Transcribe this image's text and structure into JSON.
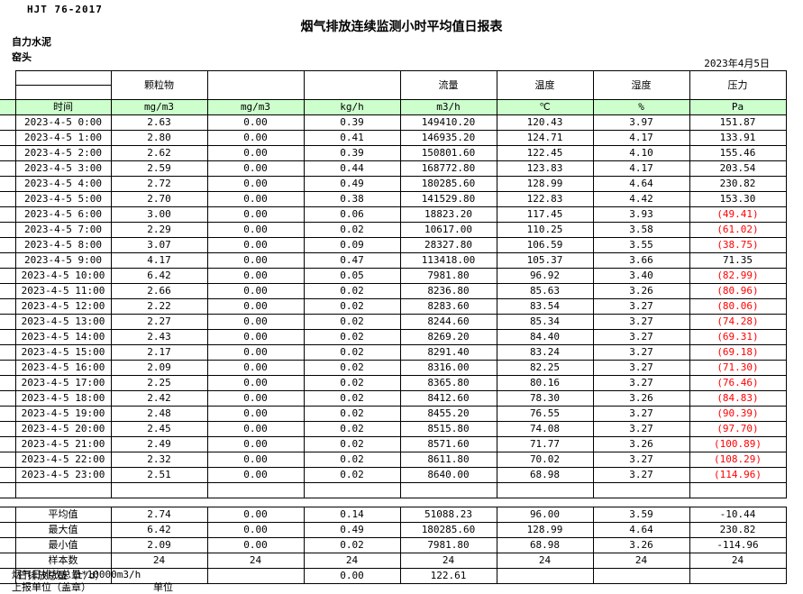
{
  "doc": {
    "standard": "HJT 76-2017",
    "title": "烟气排放连续监测小时平均值日报表",
    "company": "自力水泥",
    "station": "窑头",
    "date": "2023年4月5日"
  },
  "colors": {
    "header_fill": "#ccffcc",
    "negative": "#ff0000"
  },
  "table": {
    "param_headers": [
      "颗粒物",
      "",
      "",
      "流量",
      "温度",
      "湿度",
      "压力"
    ],
    "unit_row": [
      "时间",
      "mg/m3",
      "mg/m3",
      "kg/h",
      "m3/h",
      "℃",
      "%",
      "Pa"
    ],
    "rows": [
      {
        "t": "2023-4-5 0:00",
        "v": [
          "2.63",
          "0.00",
          "0.39",
          "149410.20",
          "120.43",
          "3.97",
          "151.87"
        ]
      },
      {
        "t": "2023-4-5 1:00",
        "v": [
          "2.80",
          "0.00",
          "0.41",
          "146935.20",
          "124.71",
          "4.17",
          "133.91"
        ]
      },
      {
        "t": "2023-4-5 2:00",
        "v": [
          "2.62",
          "0.00",
          "0.39",
          "150801.60",
          "122.45",
          "4.10",
          "155.46"
        ]
      },
      {
        "t": "2023-4-5 3:00",
        "v": [
          "2.59",
          "0.00",
          "0.44",
          "168772.80",
          "123.83",
          "4.17",
          "203.54"
        ]
      },
      {
        "t": "2023-4-5 4:00",
        "v": [
          "2.72",
          "0.00",
          "0.49",
          "180285.60",
          "128.99",
          "4.64",
          "230.82"
        ]
      },
      {
        "t": "2023-4-5 5:00",
        "v": [
          "2.70",
          "0.00",
          "0.38",
          "141529.80",
          "122.83",
          "4.42",
          "153.30"
        ]
      },
      {
        "t": "2023-4-5 6:00",
        "v": [
          "3.00",
          "0.00",
          "0.06",
          "18823.20",
          "117.45",
          "3.93",
          "(49.41)"
        ]
      },
      {
        "t": "2023-4-5 7:00",
        "v": [
          "2.29",
          "0.00",
          "0.02",
          "10617.00",
          "110.25",
          "3.58",
          "(61.02)"
        ]
      },
      {
        "t": "2023-4-5 8:00",
        "v": [
          "3.07",
          "0.00",
          "0.09",
          "28327.80",
          "106.59",
          "3.55",
          "(38.75)"
        ]
      },
      {
        "t": "2023-4-5 9:00",
        "v": [
          "4.17",
          "0.00",
          "0.47",
          "113418.00",
          "105.37",
          "3.66",
          "71.35"
        ]
      },
      {
        "t": "2023-4-5 10:00",
        "v": [
          "6.42",
          "0.00",
          "0.05",
          "7981.80",
          "96.92",
          "3.40",
          "(82.99)"
        ]
      },
      {
        "t": "2023-4-5 11:00",
        "v": [
          "2.66",
          "0.00",
          "0.02",
          "8236.80",
          "85.63",
          "3.26",
          "(80.96)"
        ]
      },
      {
        "t": "2023-4-5 12:00",
        "v": [
          "2.22",
          "0.00",
          "0.02",
          "8283.60",
          "83.54",
          "3.27",
          "(80.06)"
        ]
      },
      {
        "t": "2023-4-5 13:00",
        "v": [
          "2.27",
          "0.00",
          "0.02",
          "8244.60",
          "85.34",
          "3.27",
          "(74.28)"
        ]
      },
      {
        "t": "2023-4-5 14:00",
        "v": [
          "2.43",
          "0.00",
          "0.02",
          "8269.20",
          "84.40",
          "3.27",
          "(69.31)"
        ]
      },
      {
        "t": "2023-4-5 15:00",
        "v": [
          "2.17",
          "0.00",
          "0.02",
          "8291.40",
          "83.24",
          "3.27",
          "(69.18)"
        ]
      },
      {
        "t": "2023-4-5 16:00",
        "v": [
          "2.09",
          "0.00",
          "0.02",
          "8316.00",
          "82.25",
          "3.27",
          "(71.30)"
        ]
      },
      {
        "t": "2023-4-5 17:00",
        "v": [
          "2.25",
          "0.00",
          "0.02",
          "8365.80",
          "80.16",
          "3.27",
          "(76.46)"
        ]
      },
      {
        "t": "2023-4-5 18:00",
        "v": [
          "2.42",
          "0.00",
          "0.02",
          "8412.60",
          "78.30",
          "3.26",
          "(84.83)"
        ]
      },
      {
        "t": "2023-4-5 19:00",
        "v": [
          "2.48",
          "0.00",
          "0.02",
          "8455.20",
          "76.55",
          "3.27",
          "(90.39)"
        ]
      },
      {
        "t": "2023-4-5 20:00",
        "v": [
          "2.45",
          "0.00",
          "0.02",
          "8515.80",
          "74.08",
          "3.27",
          "(97.70)"
        ]
      },
      {
        "t": "2023-4-5 21:00",
        "v": [
          "2.49",
          "0.00",
          "0.02",
          "8571.60",
          "71.77",
          "3.26",
          "(100.89)"
        ]
      },
      {
        "t": "2023-4-5 22:00",
        "v": [
          "2.32",
          "0.00",
          "0.02",
          "8611.80",
          "70.02",
          "3.27",
          "(108.29)"
        ]
      },
      {
        "t": "2023-4-5 23:00",
        "v": [
          "2.51",
          "0.00",
          "0.02",
          "8640.00",
          "68.98",
          "3.27",
          "(114.96)"
        ]
      }
    ],
    "summary": [
      {
        "label": "平均值",
        "v": [
          "2.74",
          "0.00",
          "0.14",
          "51088.23",
          "96.00",
          "3.59",
          "-10.44"
        ]
      },
      {
        "label": "最大值",
        "v": [
          "6.42",
          "0.00",
          "0.49",
          "180285.60",
          "128.99",
          "4.64",
          "230.82"
        ]
      },
      {
        "label": "最小值",
        "v": [
          "2.09",
          "0.00",
          "0.02",
          "7981.80",
          "68.98",
          "3.26",
          "-114.96"
        ]
      },
      {
        "label": "样本数",
        "v": [
          "24",
          "24",
          "24",
          "24",
          "24",
          "24",
          "24"
        ]
      },
      {
        "label": "日排放总量（t/d）",
        "v": [
          "",
          "",
          "0.00",
          "122.61",
          "",
          "",
          ""
        ]
      }
    ]
  },
  "footer": {
    "note": "烟气日排放总量*10000m3/h",
    "report_unit_label": "上报单位（盖章）",
    "unit_label": "单位"
  }
}
